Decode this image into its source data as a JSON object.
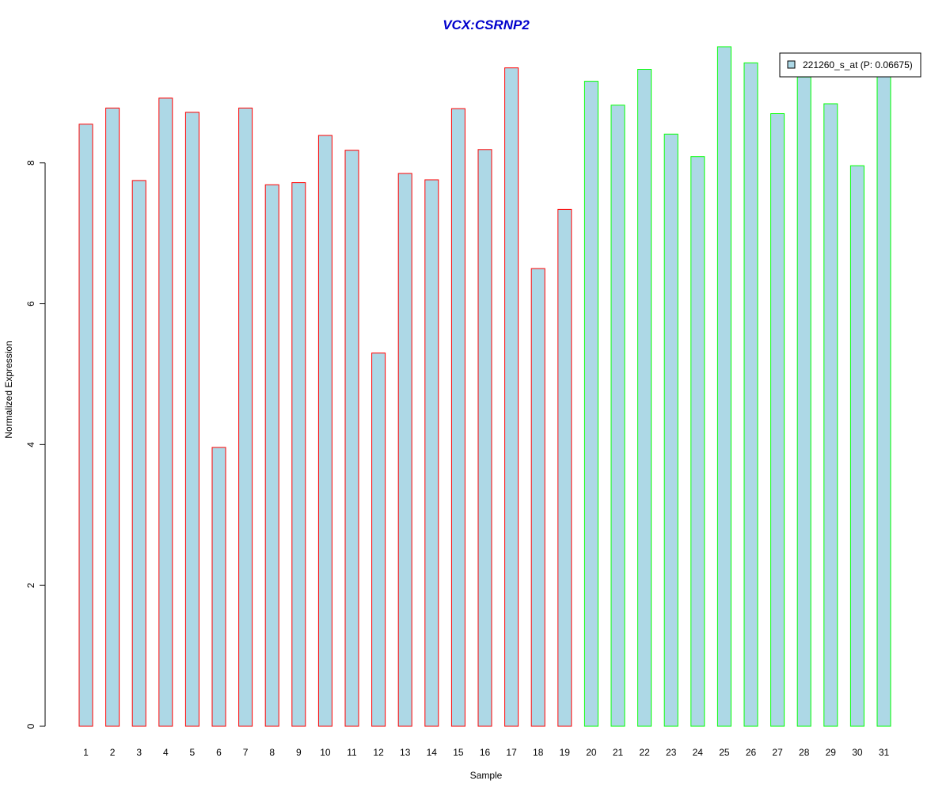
{
  "chart_data": {
    "type": "bar",
    "title": "VCX:CSRNP2",
    "xlabel": "Sample",
    "ylabel": "Normalized Expression",
    "categories": [
      "1",
      "2",
      "3",
      "4",
      "5",
      "6",
      "7",
      "8",
      "9",
      "10",
      "11",
      "12",
      "13",
      "14",
      "15",
      "16",
      "17",
      "18",
      "19",
      "20",
      "21",
      "22",
      "23",
      "24",
      "25",
      "26",
      "27",
      "28",
      "29",
      "30",
      "31"
    ],
    "series": [
      {
        "name": "221260_s_at (P: 0.06675)",
        "values": [
          8.55,
          8.78,
          7.75,
          8.92,
          8.72,
          3.96,
          8.78,
          7.69,
          7.72,
          8.39,
          8.18,
          5.3,
          7.85,
          7.76,
          8.77,
          8.19,
          9.35,
          6.5,
          7.34,
          9.16,
          8.82,
          9.33,
          8.41,
          8.09,
          9.65,
          9.42,
          8.7,
          9.22,
          8.84,
          7.96,
          9.26
        ]
      }
    ],
    "groups": [
      {
        "samples": "1-19",
        "border_color": "#ff0000"
      },
      {
        "samples": "20-31",
        "border_color": "#00ff00"
      }
    ],
    "bar_fill": "#add8e6",
    "title_color": "#0000cc",
    "ylim": [
      0,
      9.65
    ],
    "yticks": [
      0,
      2,
      4,
      6,
      8
    ],
    "grid": false,
    "legend_position": "top-right"
  }
}
